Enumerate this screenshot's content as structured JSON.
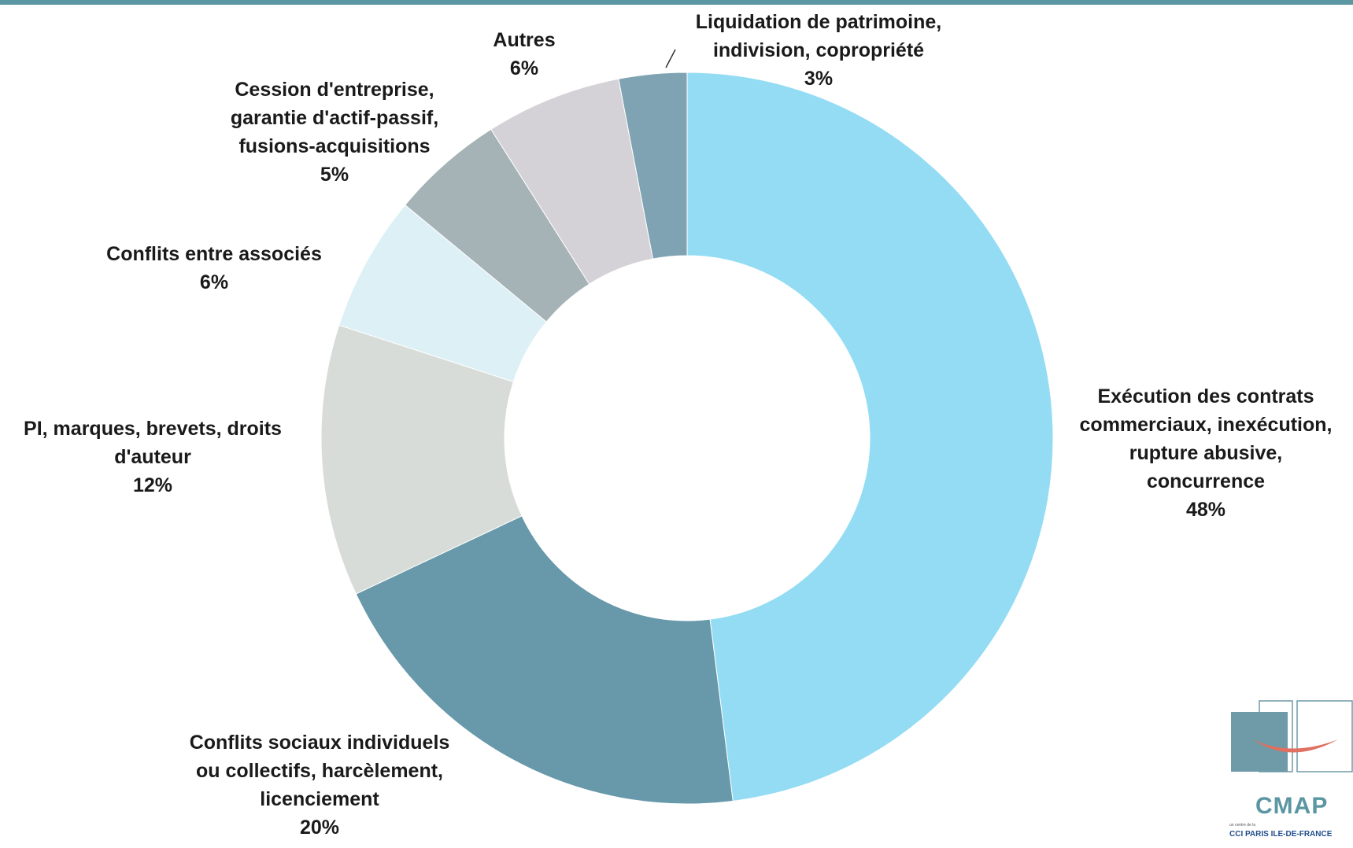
{
  "chart_data": {
    "type": "pie",
    "donut": true,
    "title": "",
    "legend": "none",
    "slices": [
      {
        "name": "Exécution des contrats commerciaux, inexécution, rupture abusive, concurrence",
        "lines": [
          "Exécution des contrats",
          "commerciaux, inexécution,",
          "rupture abusive,",
          "concurrence"
        ],
        "value": 48,
        "pct_label": "48%",
        "color": "#93dcf4"
      },
      {
        "name": "Conflits sociaux individuels ou collectifs, harcèlement, licenciement",
        "lines": [
          "Conflits sociaux individuels",
          "ou collectifs, harcèlement,",
          "licenciement"
        ],
        "value": 20,
        "pct_label": "20%",
        "color": "#6799aa"
      },
      {
        "name": "PI, marques, brevets, droits d'auteur",
        "lines": [
          "PI, marques, brevets, droits",
          "d'auteur"
        ],
        "value": 12,
        "pct_label": "12%",
        "color": "#d8dcd8"
      },
      {
        "name": "Conflits entre associés",
        "lines": [
          "Conflits entre associés"
        ],
        "value": 6,
        "pct_label": "6%",
        "color": "#dcf0f6"
      },
      {
        "name": "Cession d'entreprise, garantie d'actif-passif, fusions-acquisitions",
        "lines": [
          "Cession d'entreprise,",
          "garantie d'actif-passif,",
          "fusions-acquisitions"
        ],
        "value": 5,
        "pct_label": "5%",
        "color": "#a5b3b6"
      },
      {
        "name": "Autres",
        "lines": [
          "Autres"
        ],
        "value": 6,
        "pct_label": "6%",
        "color": "#d4d2d6"
      },
      {
        "name": "Liquidation de patrimoine, indivision, copropriété",
        "lines": [
          "Liquidation de patrimoine,",
          "indivision, copropriété"
        ],
        "value": 3,
        "pct_label": "3%",
        "color": "#80a3b4"
      }
    ]
  },
  "logo": {
    "name": "CMAP",
    "subtitle": "un centre de la",
    "org": "CCI PARIS ILE-DE-FRANCE",
    "accent": "#5b96a3",
    "swoosh": "#e07060"
  }
}
